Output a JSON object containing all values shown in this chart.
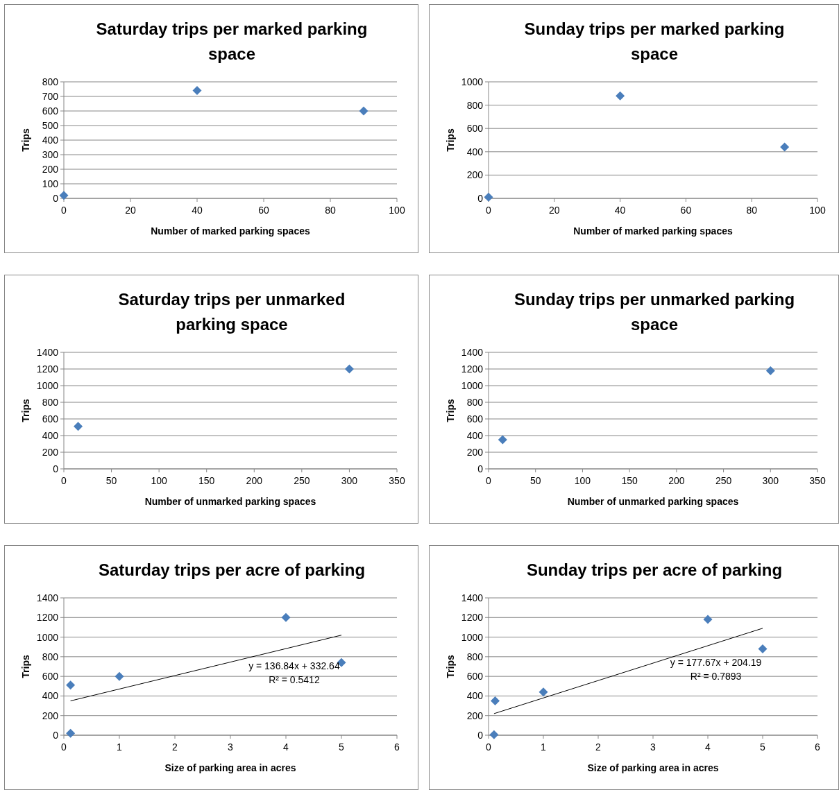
{
  "chart_data": [
    {
      "type": "scatter",
      "title": "Saturday trips per marked parking space",
      "xlabel": "Number of marked parking spaces",
      "ylabel": "Trips",
      "xlim": [
        0,
        100
      ],
      "xticks": [
        0,
        20,
        40,
        60,
        80,
        100
      ],
      "ylim": [
        0,
        800
      ],
      "yticks": [
        0,
        100,
        200,
        300,
        400,
        500,
        600,
        700,
        800
      ],
      "grid": "y",
      "marker": "diamond",
      "series": [
        {
          "color": "#4a7ebb",
          "x": [
            0,
            40,
            90
          ],
          "values": [
            20,
            740,
            600
          ]
        }
      ]
    },
    {
      "type": "scatter",
      "title": "Sunday trips per marked parking space",
      "xlabel": "Number of marked parking spaces",
      "ylabel": "Trips",
      "xlim": [
        0,
        100
      ],
      "xticks": [
        0,
        20,
        40,
        60,
        80,
        100
      ],
      "ylim": [
        0,
        1000
      ],
      "yticks": [
        0,
        200,
        400,
        600,
        800,
        1000
      ],
      "grid": "y",
      "marker": "diamond",
      "series": [
        {
          "color": "#4a7ebb",
          "x": [
            0,
            40,
            90
          ],
          "values": [
            10,
            880,
            440
          ]
        }
      ]
    },
    {
      "type": "scatter",
      "title": "Saturday trips per unmarked parking space",
      "xlabel": "Number of unmarked parking spaces",
      "ylabel": "Trips",
      "xlim": [
        0,
        350
      ],
      "xticks": [
        0,
        50,
        100,
        150,
        200,
        250,
        300,
        350
      ],
      "ylim": [
        0,
        1400
      ],
      "yticks": [
        0,
        200,
        400,
        600,
        800,
        1000,
        1200,
        1400
      ],
      "grid": "y",
      "marker": "diamond",
      "series": [
        {
          "color": "#4a7ebb",
          "x": [
            15,
            300
          ],
          "values": [
            510,
            1200
          ]
        }
      ]
    },
    {
      "type": "scatter",
      "title": "Sunday trips per unmarked parking space",
      "xlabel": "Number of unmarked parking spaces",
      "ylabel": "Trips",
      "xlim": [
        0,
        350
      ],
      "xticks": [
        0,
        50,
        100,
        150,
        200,
        250,
        300,
        350
      ],
      "ylim": [
        0,
        1400
      ],
      "yticks": [
        0,
        200,
        400,
        600,
        800,
        1000,
        1200,
        1400
      ],
      "grid": "y",
      "marker": "diamond",
      "series": [
        {
          "color": "#4a7ebb",
          "x": [
            15,
            300
          ],
          "values": [
            350,
            1180
          ]
        }
      ]
    },
    {
      "type": "scatter",
      "title": "Saturday trips per acre of parking",
      "xlabel": "Size of parking area in acres",
      "ylabel": "Trips",
      "xlim": [
        0,
        6
      ],
      "xticks": [
        0,
        1,
        2,
        3,
        4,
        5,
        6
      ],
      "ylim": [
        0,
        1400
      ],
      "yticks": [
        0,
        200,
        400,
        600,
        800,
        1000,
        1200,
        1400
      ],
      "grid": "y",
      "series": [
        {
          "color": "#4a7ebb",
          "marker": "diamond",
          "x": [
            0.12,
            0.12,
            1,
            4,
            5
          ],
          "values": [
            20,
            510,
            600,
            1200,
            740
          ]
        },
        {
          "type": "line",
          "marker": "none",
          "color": "#000000",
          "x": [
            0.12,
            5
          ],
          "values": [
            350,
            1020
          ]
        }
      ],
      "annotations": [
        "y = 136.84x + 332.64",
        "R² = 0.5412"
      ]
    },
    {
      "type": "scatter",
      "title": "Sunday trips per acre of parking",
      "xlabel": "Size of parking area in acres",
      "ylabel": "Trips",
      "xlim": [
        0,
        6
      ],
      "xticks": [
        0,
        1,
        2,
        3,
        4,
        5,
        6
      ],
      "ylim": [
        0,
        1400
      ],
      "yticks": [
        0,
        200,
        400,
        600,
        800,
        1000,
        1200,
        1400
      ],
      "grid": "y",
      "series": [
        {
          "color": "#4a7ebb",
          "marker": "diamond",
          "x": [
            0.1,
            0.12,
            1,
            4,
            5
          ],
          "values": [
            5,
            350,
            440,
            1180,
            880
          ]
        },
        {
          "type": "line",
          "marker": "none",
          "color": "#000000",
          "x": [
            0.1,
            5
          ],
          "values": [
            220,
            1090
          ]
        }
      ],
      "annotations": [
        "y = 177.67x + 204.19",
        "R² = 0.7893"
      ]
    }
  ]
}
